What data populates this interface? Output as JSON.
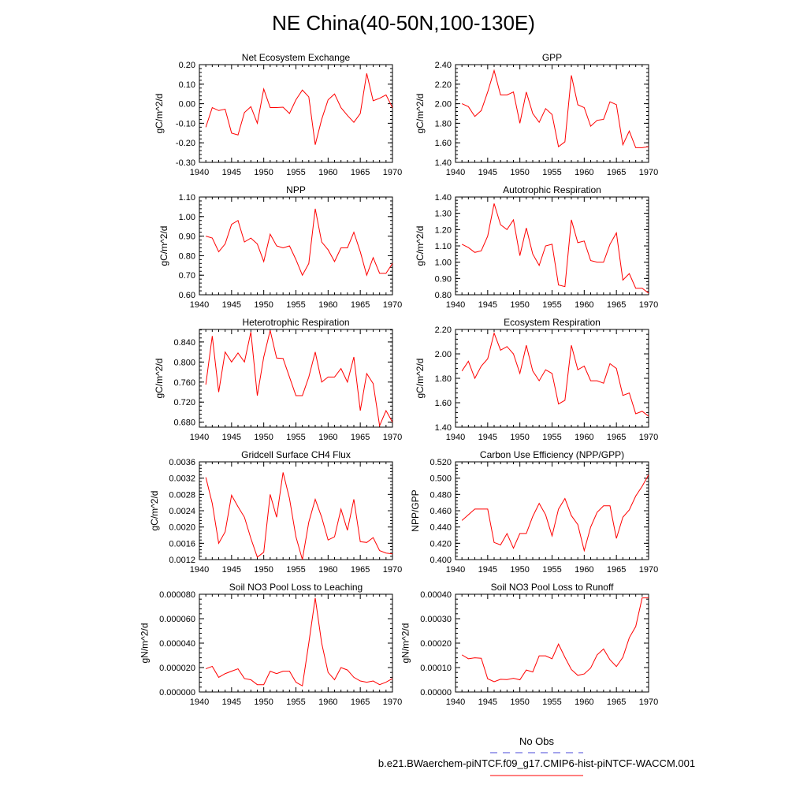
{
  "page": {
    "title": "NE China(40-50N,100-130E)"
  },
  "legend": {
    "obs_label": "No Obs",
    "model_label": "b.e21.BWaerchem-piNTCF.f09_g17.CMIP6-hist-piNTCF-WACCM.001",
    "obs_color": "#4a4ad8",
    "model_color": "#ff0000"
  },
  "chart_data": [
    {
      "type": "line",
      "title": "Net Ecosystem Exchange",
      "ylabel": "gC/m^2/d",
      "xlim": [
        1940,
        1970
      ],
      "ylim": [
        -0.3,
        0.2
      ],
      "xticks": [
        "1940",
        "1945",
        "1950",
        "1955",
        "1960",
        "1965",
        "1970"
      ],
      "yticks": [
        "-0.30",
        "-0.20",
        "-0.10",
        "0.00",
        "0.10",
        "0.20"
      ],
      "x": [
        1941,
        1942,
        1943,
        1944,
        1945,
        1946,
        1947,
        1948,
        1949,
        1950,
        1951,
        1952,
        1953,
        1954,
        1955,
        1956,
        1957,
        1958,
        1959,
        1960,
        1961,
        1962,
        1963,
        1964,
        1965,
        1966,
        1967,
        1968,
        1969,
        1970
      ],
      "series": [
        {
          "values": [
            -0.12,
            -0.02,
            -0.035,
            -0.028,
            -0.15,
            -0.16,
            -0.045,
            -0.015,
            -0.1,
            0.075,
            -0.02,
            -0.02,
            -0.018,
            -0.05,
            0.02,
            0.07,
            0.035,
            -0.21,
            -0.08,
            0.02,
            0.05,
            -0.02,
            -0.06,
            -0.095,
            -0.05,
            0.155,
            0.015,
            0.028,
            0.045,
            -0.02
          ]
        }
      ]
    },
    {
      "type": "line",
      "title": "GPP",
      "ylabel": "gC/m^2/d",
      "xlim": [
        1940,
        1970
      ],
      "ylim": [
        1.4,
        2.4
      ],
      "xticks": [
        "1940",
        "1945",
        "1950",
        "1955",
        "1960",
        "1965",
        "1970"
      ],
      "yticks": [
        "1.40",
        "1.60",
        "1.80",
        "2.00",
        "2.20",
        "2.40"
      ],
      "x": [
        1941,
        1942,
        1943,
        1944,
        1945,
        1946,
        1947,
        1948,
        1949,
        1950,
        1951,
        1952,
        1953,
        1954,
        1955,
        1956,
        1957,
        1958,
        1959,
        1960,
        1961,
        1962,
        1963,
        1964,
        1965,
        1966,
        1967,
        1968,
        1969,
        1970
      ],
      "series": [
        {
          "values": [
            2.0,
            1.97,
            1.87,
            1.93,
            2.12,
            2.34,
            2.09,
            2.09,
            2.12,
            1.8,
            2.12,
            1.9,
            1.81,
            1.95,
            1.89,
            1.56,
            1.61,
            2.29,
            1.99,
            1.96,
            1.77,
            1.83,
            1.84,
            2.02,
            1.99,
            1.58,
            1.72,
            1.55,
            1.55,
            1.56
          ]
        }
      ]
    },
    {
      "type": "line",
      "title": "NPP",
      "ylabel": "gC/m^2/d",
      "xlim": [
        1940,
        1970
      ],
      "ylim": [
        0.6,
        1.1
      ],
      "xticks": [
        "1940",
        "1945",
        "1950",
        "1955",
        "1960",
        "1965",
        "1970"
      ],
      "yticks": [
        "0.60",
        "0.70",
        "0.80",
        "0.90",
        "1.00",
        "1.10"
      ],
      "x": [
        1941,
        1942,
        1943,
        1944,
        1945,
        1946,
        1947,
        1948,
        1949,
        1950,
        1951,
        1952,
        1953,
        1954,
        1955,
        1956,
        1957,
        1958,
        1959,
        1960,
        1961,
        1962,
        1963,
        1964,
        1965,
        1966,
        1967,
        1968,
        1969,
        1970
      ],
      "series": [
        {
          "values": [
            0.9,
            0.89,
            0.82,
            0.86,
            0.96,
            0.98,
            0.87,
            0.89,
            0.86,
            0.77,
            0.91,
            0.85,
            0.84,
            0.85,
            0.78,
            0.7,
            0.76,
            1.04,
            0.87,
            0.83,
            0.77,
            0.84,
            0.84,
            0.92,
            0.82,
            0.7,
            0.79,
            0.71,
            0.71,
            0.76
          ]
        }
      ]
    },
    {
      "type": "line",
      "title": "Autotrophic Respiration",
      "ylabel": "gC/m^2/d",
      "xlim": [
        1940,
        1970
      ],
      "ylim": [
        0.8,
        1.4
      ],
      "xticks": [
        "1940",
        "1945",
        "1950",
        "1955",
        "1960",
        "1965",
        "1970"
      ],
      "yticks": [
        "0.80",
        "0.90",
        "1.00",
        "1.10",
        "1.20",
        "1.30",
        "1.40"
      ],
      "x": [
        1941,
        1942,
        1943,
        1944,
        1945,
        1946,
        1947,
        1948,
        1949,
        1950,
        1951,
        1952,
        1953,
        1954,
        1955,
        1956,
        1957,
        1958,
        1959,
        1960,
        1961,
        1962,
        1963,
        1964,
        1965,
        1966,
        1967,
        1968,
        1969,
        1970
      ],
      "series": [
        {
          "values": [
            1.11,
            1.09,
            1.06,
            1.07,
            1.16,
            1.36,
            1.23,
            1.2,
            1.26,
            1.04,
            1.21,
            1.05,
            0.98,
            1.1,
            1.11,
            0.86,
            0.85,
            1.26,
            1.12,
            1.13,
            1.01,
            1.0,
            1.0,
            1.11,
            1.18,
            0.89,
            0.93,
            0.84,
            0.84,
            0.81
          ]
        }
      ]
    },
    {
      "type": "line",
      "title": "Heterotrophic Respiration",
      "ylabel": "gC/m^2/d",
      "xlim": [
        1940,
        1970
      ],
      "ylim": [
        0.67,
        0.865
      ],
      "xticks": [
        "1940",
        "1945",
        "1950",
        "1955",
        "1960",
        "1965",
        "1970"
      ],
      "yticks": [
        "0.680",
        "0.720",
        "0.760",
        "0.800",
        "0.840"
      ],
      "ytick_values": [
        0.68,
        0.72,
        0.76,
        0.8,
        0.84
      ],
      "x": [
        1941,
        1942,
        1943,
        1944,
        1945,
        1946,
        1947,
        1948,
        1949,
        1950,
        1951,
        1952,
        1953,
        1954,
        1955,
        1956,
        1957,
        1958,
        1959,
        1960,
        1961,
        1962,
        1963,
        1964,
        1965,
        1966,
        1967,
        1968,
        1969,
        1970
      ],
      "series": [
        {
          "values": [
            0.755,
            0.852,
            0.74,
            0.82,
            0.8,
            0.818,
            0.8,
            0.86,
            0.733,
            0.81,
            0.863,
            0.808,
            0.807,
            0.77,
            0.733,
            0.733,
            0.77,
            0.82,
            0.76,
            0.77,
            0.77,
            0.787,
            0.76,
            0.81,
            0.703,
            0.777,
            0.757,
            0.673,
            0.703,
            0.68
          ]
        }
      ]
    },
    {
      "type": "line",
      "title": "Ecosystem Respiration",
      "ylabel": "gC/m^2/d",
      "xlim": [
        1940,
        1970
      ],
      "ylim": [
        1.4,
        2.2
      ],
      "xticks": [
        "1940",
        "1945",
        "1950",
        "1955",
        "1960",
        "1965",
        "1970"
      ],
      "yticks": [
        "1.40",
        "1.60",
        "1.80",
        "2.00",
        "2.20"
      ],
      "x": [
        1941,
        1942,
        1943,
        1944,
        1945,
        1946,
        1947,
        1948,
        1949,
        1950,
        1951,
        1952,
        1953,
        1954,
        1955,
        1956,
        1957,
        1958,
        1959,
        1960,
        1961,
        1962,
        1963,
        1964,
        1965,
        1966,
        1967,
        1968,
        1969,
        1970
      ],
      "series": [
        {
          "values": [
            1.86,
            1.94,
            1.8,
            1.9,
            1.96,
            2.17,
            2.03,
            2.06,
            2.0,
            1.84,
            2.07,
            1.86,
            1.78,
            1.87,
            1.84,
            1.59,
            1.62,
            2.07,
            1.87,
            1.9,
            1.78,
            1.78,
            1.76,
            1.92,
            1.88,
            1.66,
            1.68,
            1.51,
            1.53,
            1.49
          ]
        }
      ]
    },
    {
      "type": "line",
      "title": "Gridcell Surface CH4 Flux",
      "ylabel": "gC/m^2/d",
      "xlim": [
        1940,
        1970
      ],
      "ylim": [
        0.0012,
        0.0036
      ],
      "xticks": [
        "1940",
        "1945",
        "1950",
        "1955",
        "1960",
        "1965",
        "1970"
      ],
      "yticks": [
        "0.0012",
        "0.0016",
        "0.0020",
        "0.0024",
        "0.0028",
        "0.0032",
        "0.0036"
      ],
      "x": [
        1941,
        1942,
        1943,
        1944,
        1945,
        1946,
        1947,
        1948,
        1949,
        1950,
        1951,
        1952,
        1953,
        1954,
        1955,
        1956,
        1957,
        1958,
        1959,
        1960,
        1961,
        1962,
        1963,
        1964,
        1965,
        1966,
        1967,
        1968,
        1969,
        1970
      ],
      "series": [
        {
          "values": [
            0.00322,
            0.00258,
            0.0016,
            0.00188,
            0.00278,
            0.0025,
            0.00224,
            0.00172,
            0.00126,
            0.00138,
            0.0028,
            0.00224,
            0.00334,
            0.0027,
            0.00176,
            0.0012,
            0.00212,
            0.00268,
            0.00224,
            0.00168,
            0.00176,
            0.00244,
            0.00192,
            0.00268,
            0.00164,
            0.00162,
            0.00174,
            0.00142,
            0.00136,
            0.00134
          ]
        }
      ]
    },
    {
      "type": "line",
      "title": "Carbon Use Efficiency (NPP/GPP)",
      "ylabel": "NPP/GPP",
      "xlim": [
        1940,
        1970
      ],
      "ylim": [
        0.4,
        0.52
      ],
      "xticks": [
        "1940",
        "1945",
        "1950",
        "1955",
        "1960",
        "1965",
        "1970"
      ],
      "yticks": [
        "0.400",
        "0.420",
        "0.440",
        "0.460",
        "0.480",
        "0.500",
        "0.520"
      ],
      "x": [
        1941,
        1942,
        1943,
        1944,
        1945,
        1946,
        1947,
        1948,
        1949,
        1950,
        1951,
        1952,
        1953,
        1954,
        1955,
        1956,
        1957,
        1958,
        1959,
        1960,
        1961,
        1962,
        1963,
        1964,
        1965,
        1966,
        1967,
        1968,
        1969,
        1970
      ],
      "series": [
        {
          "values": [
            0.448,
            0.455,
            0.462,
            0.462,
            0.462,
            0.421,
            0.418,
            0.432,
            0.414,
            0.432,
            0.432,
            0.453,
            0.469,
            0.455,
            0.429,
            0.462,
            0.475,
            0.454,
            0.443,
            0.411,
            0.44,
            0.458,
            0.466,
            0.466,
            0.426,
            0.452,
            0.461,
            0.478,
            0.49,
            0.504
          ]
        }
      ]
    },
    {
      "type": "line",
      "title": "Soil NO3 Pool Loss to Leaching",
      "ylabel": "gN/m^2/d",
      "xlim": [
        1940,
        1970
      ],
      "ylim": [
        0,
        8e-05
      ],
      "xticks": [
        "1940",
        "1945",
        "1950",
        "1955",
        "1960",
        "1965",
        "1970"
      ],
      "yticks": [
        "0.000000",
        "0.000020",
        "0.000040",
        "0.000060",
        "0.000080"
      ],
      "x": [
        1941,
        1942,
        1943,
        1944,
        1945,
        1946,
        1947,
        1948,
        1949,
        1950,
        1951,
        1952,
        1953,
        1954,
        1955,
        1956,
        1957,
        1958,
        1959,
        1960,
        1961,
        1962,
        1963,
        1964,
        1965,
        1966,
        1967,
        1968,
        1969,
        1970
      ],
      "series": [
        {
          "values": [
            1.9e-05,
            2.1e-05,
            1.2e-05,
            1.5e-05,
            1.7e-05,
            1.9e-05,
            1.1e-05,
            1e-05,
            6e-06,
            6e-06,
            1.7e-05,
            1.5e-05,
            1.7e-05,
            1.7e-05,
            8e-06,
            5e-06,
            4e-05,
            7.7e-05,
            4e-05,
            1.6e-05,
            1e-05,
            2e-05,
            1.8e-05,
            1.2e-05,
            9e-06,
            8e-06,
            9e-06,
            6e-06,
            8e-06,
            1.1e-05
          ]
        }
      ]
    },
    {
      "type": "line",
      "title": "Soil NO3 Pool Loss to Runoff",
      "ylabel": "gN/m^2/d",
      "xlim": [
        1940,
        1970
      ],
      "ylim": [
        0,
        0.0004
      ],
      "xticks": [
        "1940",
        "1945",
        "1950",
        "1955",
        "1960",
        "1965",
        "1970"
      ],
      "yticks": [
        "0.00000",
        "0.00010",
        "0.00020",
        "0.00030",
        "0.00040"
      ],
      "x": [
        1941,
        1942,
        1943,
        1944,
        1945,
        1946,
        1947,
        1948,
        1949,
        1950,
        1951,
        1952,
        1953,
        1954,
        1955,
        1956,
        1957,
        1958,
        1959,
        1960,
        1961,
        1962,
        1963,
        1964,
        1965,
        1966,
        1967,
        1968,
        1969,
        1970
      ],
      "series": [
        {
          "values": [
            0.000152,
            0.000136,
            0.00014,
            0.000138,
            5.4e-05,
            4.2e-05,
            5.2e-05,
            5.1e-05,
            5.6e-05,
            5e-05,
            9e-05,
            8.2e-05,
            0.000148,
            0.000148,
            0.000136,
            0.000196,
            0.000142,
            9.2e-05,
            6.8e-05,
            7.4e-05,
            9.8e-05,
            0.000152,
            0.000176,
            0.000132,
            0.000104,
            0.000142,
            0.000222,
            0.000268,
            0.000385,
            0.000385
          ]
        }
      ]
    }
  ]
}
